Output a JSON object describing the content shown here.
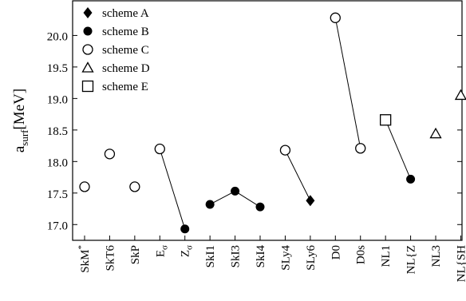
{
  "chart_data": {
    "type": "scatter",
    "ylabel": "a",
    "ylabel_sub": "surf",
    "ylabel_unit": "[MeV]",
    "ylim": [
      16.75,
      20.55
    ],
    "yticks": [
      17.0,
      17.5,
      18.0,
      18.5,
      19.0,
      19.5,
      20.0
    ],
    "ytick_labels": [
      "17.0",
      "17.5",
      "18.0",
      "18.5",
      "19.0",
      "19.5",
      "20.0"
    ],
    "grid": false,
    "legend_placement": "top-left",
    "categories": [
      {
        "base": "SkM",
        "sup": "*"
      },
      {
        "base": "SkT6"
      },
      {
        "base": "SkP"
      },
      {
        "base": "E",
        "sub": "σ"
      },
      {
        "base": "Z",
        "sub": "σ"
      },
      {
        "base": "SkI1"
      },
      {
        "base": "SkI3"
      },
      {
        "base": "SkI4"
      },
      {
        "base": "SLy4"
      },
      {
        "base": "SLy6"
      },
      {
        "base": "D0"
      },
      {
        "base": "D0s"
      },
      {
        "base": "NL1"
      },
      {
        "base": "NL{Z"
      },
      {
        "base": "NL3"
      },
      {
        "base": "NL{SH"
      }
    ],
    "series": [
      {
        "name": "scheme A",
        "marker": "diamond-filled",
        "points": [
          {
            "category": "SLy6",
            "y": 17.38
          }
        ]
      },
      {
        "name": "scheme B",
        "marker": "circle-filled",
        "points": [
          {
            "category": "Zσ",
            "y": 16.93
          },
          {
            "category": "SkI1",
            "y": 17.32
          },
          {
            "category": "SkI3",
            "y": 17.53
          },
          {
            "category": "SkI4",
            "y": 17.28
          },
          {
            "category": "NL{Z",
            "y": 17.72
          }
        ]
      },
      {
        "name": "scheme C",
        "marker": "circle-open",
        "points": [
          {
            "category": "SkM*",
            "y": 17.6
          },
          {
            "category": "SkT6",
            "y": 18.12
          },
          {
            "category": "SkP",
            "y": 17.6
          },
          {
            "category": "Eσ",
            "y": 18.2
          },
          {
            "category": "SLy4",
            "y": 18.18
          },
          {
            "category": "D0",
            "y": 20.28
          },
          {
            "category": "D0s",
            "y": 18.21
          }
        ]
      },
      {
        "name": "scheme D",
        "marker": "triangle-open",
        "points": [
          {
            "category": "NL3",
            "y": 18.44
          },
          {
            "category": "NL{SH",
            "y": 19.05
          }
        ]
      },
      {
        "name": "scheme E",
        "marker": "square-open",
        "points": [
          {
            "category": "NL1",
            "y": 18.66
          }
        ]
      }
    ],
    "connections": [
      {
        "from_index": 3,
        "from_y": 18.2,
        "to_index": 4,
        "to_y": 16.93
      },
      {
        "from_index": 5,
        "from_y": 17.32,
        "to_index": 6,
        "to_y": 17.53
      },
      {
        "from_index": 6,
        "from_y": 17.53,
        "to_index": 7,
        "to_y": 17.28
      },
      {
        "from_index": 8,
        "from_y": 18.18,
        "to_index": 9,
        "to_y": 17.38
      },
      {
        "from_index": 10,
        "from_y": 20.28,
        "to_index": 11,
        "to_y": 18.21
      },
      {
        "from_index": 12,
        "from_y": 18.66,
        "to_index": 13,
        "to_y": 17.72
      }
    ]
  }
}
